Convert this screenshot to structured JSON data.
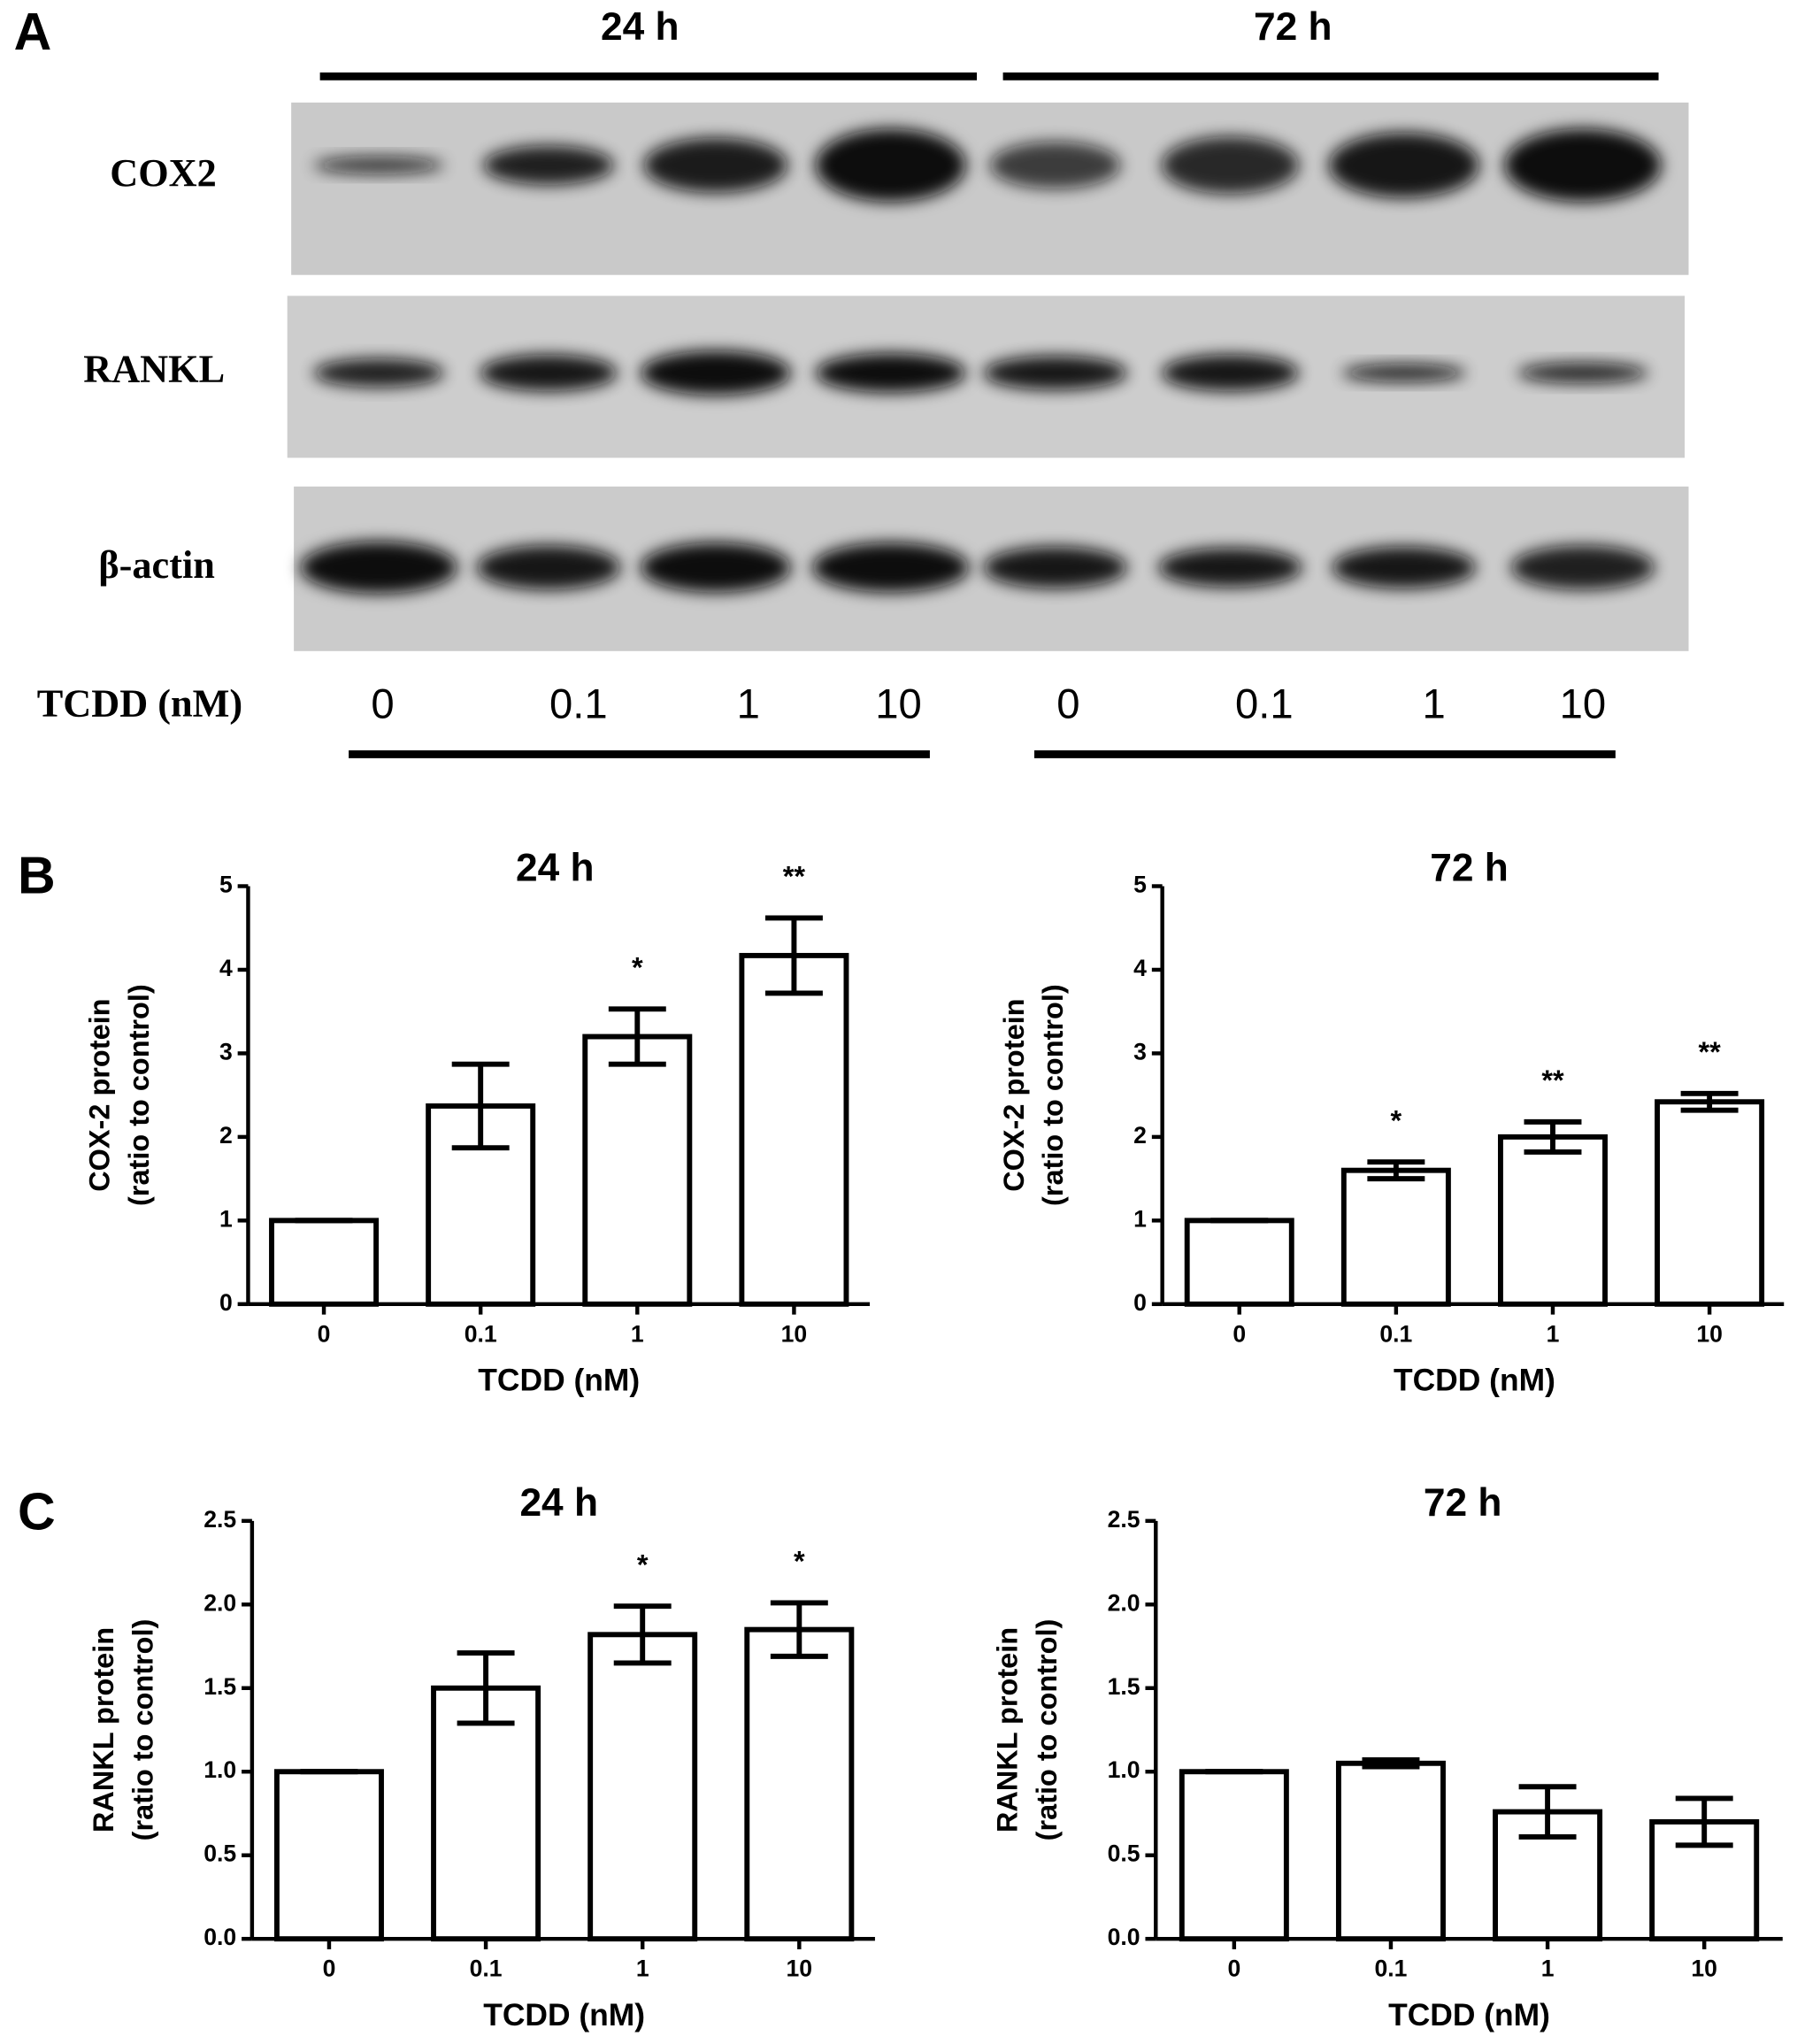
{
  "panel_a": {
    "letter": "A",
    "groups": [
      "24 h",
      "72 h"
    ],
    "proteins": [
      "COX2",
      "RANKL",
      "β-actin"
    ],
    "dose_label": "TCDD (nM)",
    "doses": [
      "0",
      "0.1",
      "1",
      "10",
      "0",
      "0.1",
      "1",
      "10"
    ]
  },
  "panel_labels": {
    "b": "B",
    "c": "C"
  },
  "chart_data": [
    {
      "type": "bar",
      "title": "24 h",
      "xlabel": "TCDD (nM)",
      "ylabel": [
        "COX-2 protein",
        "(ratio to control)"
      ],
      "categories": [
        "0",
        "0.1",
        "1",
        "10"
      ],
      "values": [
        1,
        2.37,
        3.2,
        4.17
      ],
      "errors": [
        0,
        0.5,
        0.33,
        0.45
      ],
      "annotations": [
        null,
        null,
        "*",
        "**"
      ],
      "color": "#ffffff",
      "ylim": [
        0,
        5
      ],
      "yticks": [
        0,
        1,
        2,
        3,
        4,
        5
      ]
    },
    {
      "type": "bar",
      "title": "72 h",
      "xlabel": "TCDD (nM)",
      "ylabel": [
        "COX-2 protein",
        "(ratio to control)"
      ],
      "categories": [
        "0",
        "0.1",
        "1",
        "10"
      ],
      "values": [
        1,
        1.6,
        2.0,
        2.42
      ],
      "errors": [
        0,
        0.1,
        0.18,
        0.1
      ],
      "annotations": [
        null,
        "*",
        "**",
        "**"
      ],
      "color": "#ffffff",
      "ylim": [
        0,
        5
      ],
      "yticks": [
        0,
        1,
        2,
        3,
        4,
        5
      ]
    },
    {
      "type": "bar",
      "title": "24 h",
      "xlabel": "TCDD (nM)",
      "ylabel": [
        "RANKL protein",
        "(ratio to control)"
      ],
      "categories": [
        "0",
        "0.1",
        "1",
        "10"
      ],
      "values": [
        1,
        1.5,
        1.82,
        1.85
      ],
      "errors": [
        0,
        0.21,
        0.17,
        0.16
      ],
      "annotations": [
        null,
        null,
        "*",
        "*"
      ],
      "color": "#ffffff",
      "ylim": [
        0,
        2.5
      ],
      "yticks": [
        {
          "value": 0,
          "label": "0.0"
        },
        0.5,
        {
          "value": 1,
          "label": "1.0"
        },
        1.5,
        {
          "value": 2,
          "label": "2.0"
        },
        2.5
      ]
    },
    {
      "type": "bar",
      "title": "72 h",
      "xlabel": "TCDD (nM)",
      "ylabel": [
        "RANKL protein",
        "(ratio to control)"
      ],
      "categories": [
        "0",
        "0.1",
        "1",
        "10"
      ],
      "values": [
        1,
        1.05,
        0.76,
        0.7
      ],
      "errors": [
        0,
        0.02,
        0.15,
        0.14
      ],
      "color": "#ffffff",
      "ylim": [
        0,
        2.5
      ],
      "yticks": [
        {
          "value": 0,
          "label": "0.0"
        },
        0.5,
        {
          "value": 1,
          "label": "1.0"
        },
        1.5,
        {
          "value": 2,
          "label": "2.0"
        },
        2.5
      ]
    }
  ]
}
